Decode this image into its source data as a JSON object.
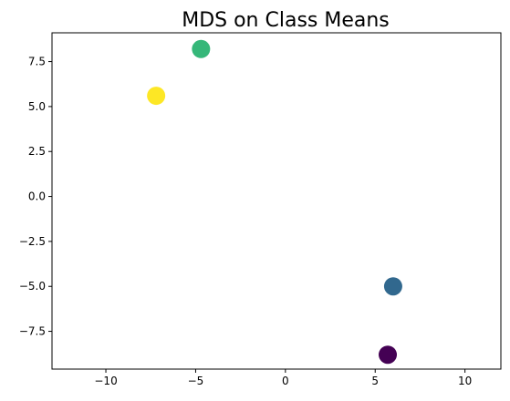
{
  "chart_data": {
    "type": "scatter",
    "title": "MDS on Class Means",
    "xlabel": "",
    "ylabel": "",
    "xlim": [
      -13.0,
      12.0
    ],
    "ylim": [
      -9.6,
      9.1
    ],
    "grid": false,
    "x_ticks": [
      -10,
      -5,
      0,
      5,
      10
    ],
    "x_tick_labels": [
      "−10",
      "−5",
      "0",
      "5",
      "10"
    ],
    "y_ticks": [
      -7.5,
      -5.0,
      -2.5,
      0.0,
      2.5,
      5.0,
      7.5
    ],
    "y_tick_labels": [
      "−7.5",
      "−5.0",
      "−2.5",
      "0.0",
      "2.5",
      "5.0",
      "7.5"
    ],
    "points": [
      {
        "x": -4.7,
        "y": 8.2,
        "color": "#35b779"
      },
      {
        "x": -7.2,
        "y": 5.6,
        "color": "#fde725"
      },
      {
        "x": 6.0,
        "y": -5.0,
        "color": "#31688e"
      },
      {
        "x": 5.7,
        "y": -8.8,
        "color": "#440154"
      }
    ]
  }
}
